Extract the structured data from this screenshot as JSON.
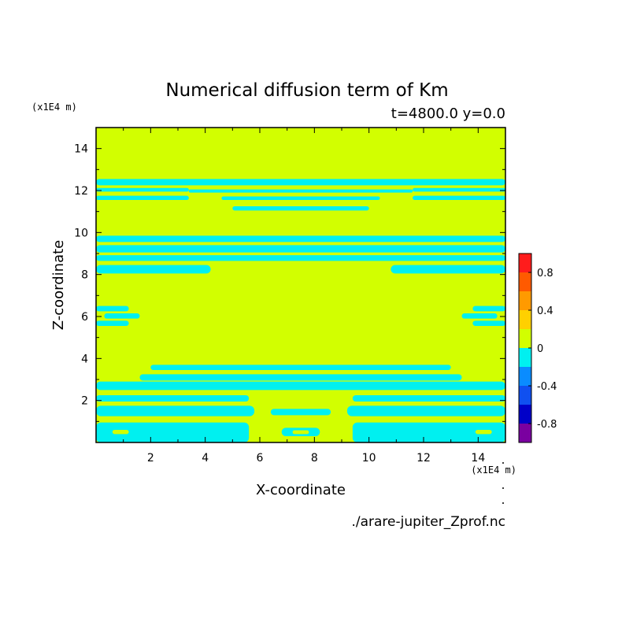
{
  "chart_data": {
    "type": "heatmap",
    "title": "Numerical diffusion term of Km",
    "subtitle": "t=4800.0 y=0.0",
    "xlabel": "X-coordinate",
    "ylabel": "Z-coordinate",
    "x_unit": "(x1E4 m)",
    "y_unit": "(x1E4 m)",
    "source": "./arare-jupiter_Zprof.nc",
    "xlim": [
      0,
      15
    ],
    "ylim": [
      0,
      15
    ],
    "x_ticks": [
      2,
      4,
      6,
      8,
      10,
      12,
      14
    ],
    "y_ticks": [
      2,
      4,
      6,
      8,
      10,
      12,
      14
    ],
    "grid": false,
    "legend": "right",
    "colorbar": {
      "levels": [
        -1.0,
        -0.8,
        -0.6,
        -0.4,
        -0.2,
        0.0,
        0.2,
        0.4,
        0.6,
        0.8,
        1.0
      ],
      "colors": [
        "#7a00a0",
        "#0000c8",
        "#1050f0",
        "#0a8cff",
        "#00f0f0",
        "#d2ff00",
        "#ffd000",
        "#ff9a00",
        "#ff5a00",
        "#ff1c1c",
        "#ffb0b0"
      ],
      "tick_labels": [
        "-0.8",
        "-0.4",
        "0",
        "0.4",
        "0.8"
      ],
      "tick_values": [
        -0.8,
        -0.4,
        0.0,
        0.4,
        0.8
      ]
    },
    "background_level": "0 to 0.2",
    "negative_bands": [
      {
        "x0": 0,
        "x1": 15,
        "z0": 12.25,
        "z1": 12.55,
        "value": -0.1
      },
      {
        "x0": 0,
        "x1": 3.4,
        "z0": 11.95,
        "z1": 12.12,
        "value": -0.1
      },
      {
        "x0": 11.6,
        "x1": 15,
        "z0": 11.95,
        "z1": 12.12,
        "value": -0.1
      },
      {
        "x0": 3.4,
        "x1": 11.6,
        "z0": 11.9,
        "z1": 12.05,
        "value": -0.1
      },
      {
        "x0": 0,
        "x1": 3.4,
        "z0": 11.55,
        "z1": 11.75,
        "value": -0.1
      },
      {
        "x0": 11.6,
        "x1": 15,
        "z0": 11.55,
        "z1": 11.75,
        "value": -0.1
      },
      {
        "x0": 4.6,
        "x1": 10.4,
        "z0": 11.55,
        "z1": 11.72,
        "value": -0.1
      },
      {
        "x0": 5.0,
        "x1": 10.0,
        "z0": 11.05,
        "z1": 11.25,
        "value": -0.1
      },
      {
        "x0": 0,
        "x1": 15,
        "z0": 9.55,
        "z1": 9.85,
        "value": -0.1
      },
      {
        "x0": 0,
        "x1": 15,
        "z0": 9.05,
        "z1": 9.4,
        "value": -0.1
      },
      {
        "x0": 0,
        "x1": 15,
        "z0": 8.65,
        "z1": 8.92,
        "value": -0.1
      },
      {
        "x0": 0,
        "x1": 4.2,
        "z0": 8.05,
        "z1": 8.45,
        "value": -0.1
      },
      {
        "x0": 10.8,
        "x1": 15,
        "z0": 8.05,
        "z1": 8.45,
        "value": -0.1
      },
      {
        "x0": 0,
        "x1": 1.2,
        "z0": 6.25,
        "z1": 6.5,
        "value": -0.1
      },
      {
        "x0": 13.8,
        "x1": 15,
        "z0": 6.25,
        "z1": 6.5,
        "value": -0.1
      },
      {
        "x0": 0.3,
        "x1": 1.6,
        "z0": 5.9,
        "z1": 6.15,
        "value": -0.1
      },
      {
        "x0": 13.4,
        "x1": 14.7,
        "z0": 5.9,
        "z1": 6.15,
        "value": -0.1
      },
      {
        "x0": 0,
        "x1": 1.2,
        "z0": 5.55,
        "z1": 5.8,
        "value": -0.1
      },
      {
        "x0": 13.8,
        "x1": 15,
        "z0": 5.55,
        "z1": 5.8,
        "value": -0.1
      },
      {
        "x0": 2.0,
        "x1": 13.0,
        "z0": 3.45,
        "z1": 3.7,
        "value": -0.1
      },
      {
        "x0": 1.6,
        "x1": 13.4,
        "z0": 2.95,
        "z1": 3.25,
        "value": -0.1
      },
      {
        "x0": 0,
        "x1": 15,
        "z0": 2.5,
        "z1": 2.9,
        "value": -0.1
      },
      {
        "x0": 0,
        "x1": 5.6,
        "z0": 1.95,
        "z1": 2.25,
        "value": -0.1
      },
      {
        "x0": 9.4,
        "x1": 15,
        "z0": 1.95,
        "z1": 2.25,
        "value": -0.1
      },
      {
        "x0": 0,
        "x1": 5.8,
        "z0": 1.25,
        "z1": 1.75,
        "value": -0.1
      },
      {
        "x0": 9.2,
        "x1": 15,
        "z0": 1.25,
        "z1": 1.75,
        "value": -0.1
      },
      {
        "x0": 0,
        "x1": 5.6,
        "z0": 0.0,
        "z1": 0.95,
        "value": -0.1
      },
      {
        "x0": 9.4,
        "x1": 15,
        "z0": 0.0,
        "z1": 0.95,
        "value": -0.1
      },
      {
        "x0": 6.4,
        "x1": 8.6,
        "z0": 1.3,
        "z1": 1.6,
        "value": -0.1
      },
      {
        "x0": 6.8,
        "x1": 8.2,
        "z0": 0.3,
        "z1": 0.7,
        "value": -0.1
      }
    ],
    "positive_islands": [
      {
        "x0": 0.6,
        "x1": 1.2,
        "z0": 0.4,
        "z1": 0.6,
        "value": 0.1
      },
      {
        "x0": 13.9,
        "x1": 14.5,
        "z0": 0.4,
        "z1": 0.6,
        "value": 0.1
      },
      {
        "x0": 7.2,
        "x1": 7.8,
        "z0": 0.4,
        "z1": 0.58,
        "value": 0.1
      }
    ]
  }
}
